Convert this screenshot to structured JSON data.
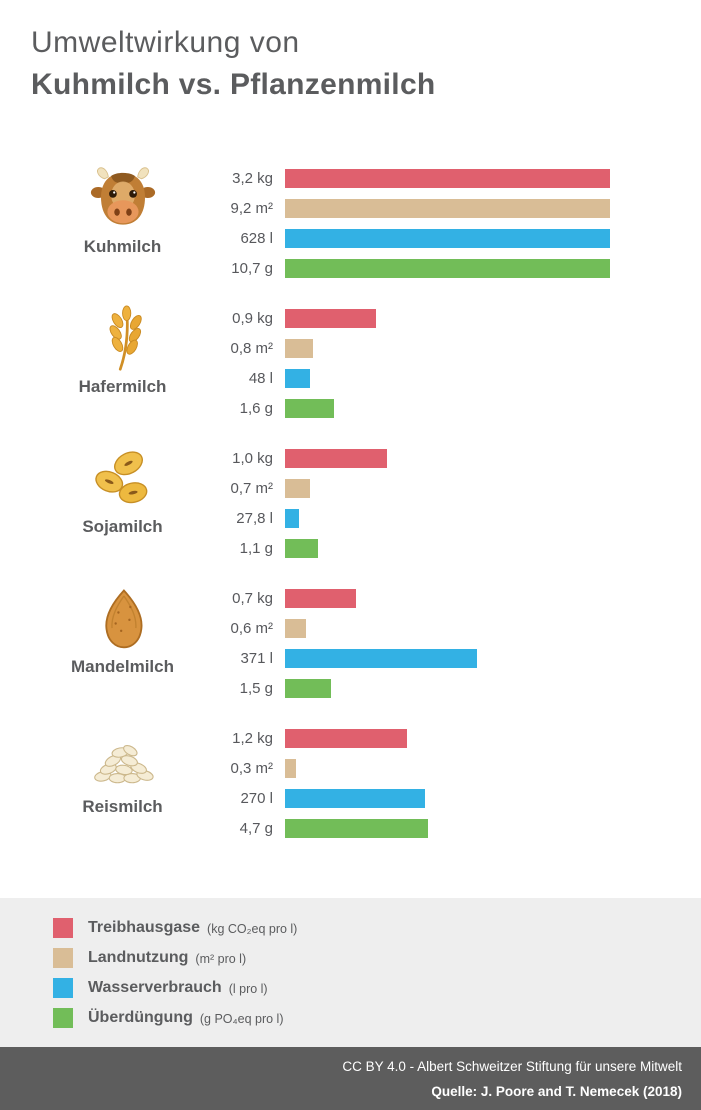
{
  "title": {
    "line1": "Umweltwirkung von",
    "line2": "Kuhmilch vs. Pflanzenmilch"
  },
  "icons": [
    "cow-icon",
    "oat-icon",
    "soy-icon",
    "almond-icon",
    "rice-icon"
  ],
  "colors": {
    "greenhouse": "#e0606e",
    "land": "#d9bd96",
    "water": "#33b1e4",
    "fertilizer": "#72bd58",
    "legend_background": "#eeeeee",
    "footer_background": "#5d5d5d",
    "text": "#5b5c5e"
  },
  "chart_data": {
    "type": "bar",
    "title": "Umweltwirkung von Kuhmilch vs. Pflanzenmilch",
    "groups": [
      "Kuhmilch",
      "Hafermilch",
      "Sojamilch",
      "Mandelmilch",
      "Reismilch"
    ],
    "scaling": "each metric scaled so the Kuhmilch (maximum) value is full bar width",
    "legend_position": "bottom",
    "metrics": [
      {
        "key": "greenhouse",
        "name": "Treibhausgase",
        "unit_display": "(kg CO₂eq pro l)",
        "color": "#e0606e",
        "values": [
          3.2,
          0.9,
          1.0,
          0.7,
          1.2
        ],
        "labels": [
          "3,2 kg",
          "0,9 kg",
          "1,0 kg",
          "0,7 kg",
          "1,2 kg"
        ]
      },
      {
        "key": "land",
        "name": "Landnutzung",
        "unit_display": "(m² pro l)",
        "color": "#d9bd96",
        "values": [
          9.2,
          0.8,
          0.7,
          0.6,
          0.3
        ],
        "labels": [
          "9,2 m²",
          "0,8 m²",
          "0,7 m²",
          "0,6 m²",
          "0,3 m²"
        ]
      },
      {
        "key": "water",
        "name": "Wasserverbrauch",
        "unit_display": "(l pro l)",
        "color": "#33b1e4",
        "values": [
          628,
          48,
          27.8,
          371,
          270
        ],
        "labels": [
          "628 l",
          "48 l",
          "27,8 l",
          "371 l",
          "270 l"
        ]
      },
      {
        "key": "fertilizer",
        "name": "Überdüngung",
        "unit_display": "(g PO₄eq pro l)",
        "color": "#72bd58",
        "values": [
          10.7,
          1.6,
          1.1,
          1.5,
          4.7
        ],
        "labels": [
          "10,7 g",
          "1,6 g",
          "1,1 g",
          "1,5 g",
          "4,7 g"
        ]
      }
    ]
  },
  "footer": {
    "license_line": "CC BY 4.0 -  Albert Schweitzer Stiftung für unsere Mitwelt",
    "source_line": "Quelle: J. Poore and T. Nemecek (2018)"
  }
}
